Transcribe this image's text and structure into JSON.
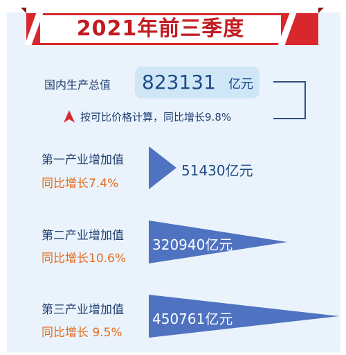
{
  "title": "2021年前三季度",
  "gdp": {
    "label": "国内生产总值",
    "value": "823131",
    "unit": "亿元",
    "note": "按可比价格计算，同比增长9.8%"
  },
  "industries": [
    {
      "name": "第一产业增加值",
      "growth": "同比增长7.4%",
      "value": "51430亿元"
    },
    {
      "name": "第二产业增加值",
      "growth": "同比增长10.6%",
      "value": "320940亿元"
    },
    {
      "name": "第三产业增加值",
      "growth": "同比增长 9.5%",
      "value": "450761亿元"
    }
  ],
  "colors": {
    "banner_red": "#d8282d",
    "title_red": "#c11b20",
    "triangle_blue": "#4f72c1",
    "label_navy": "#1f3e72",
    "growth_orange": "#e56a1c",
    "panel_bg": "#eaf3fb"
  }
}
